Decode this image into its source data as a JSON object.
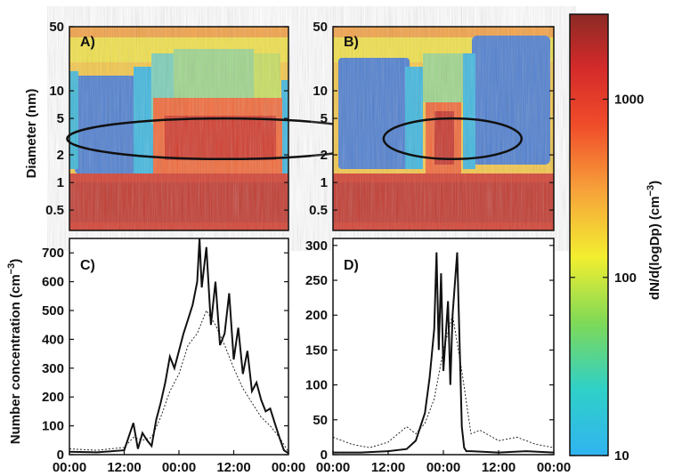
{
  "figure": {
    "y_label_top": "Diameter (nm)",
    "y_label_bottom": "Number concentration (cm",
    "y_label_bottom_sup": "−3",
    "y_label_bottom_close": ")",
    "colorbar_label": "dN/d(logDp) (cm",
    "colorbar_label_sup": "−3",
    "colorbar_label_close": ")"
  },
  "chart_data": [
    {
      "type": "heatmap",
      "panel": "A)",
      "yscale": "log",
      "ylim": [
        0.3,
        50
      ],
      "yticks": [
        "50",
        "10",
        "5",
        "2",
        "1",
        "0.5"
      ],
      "ytick_values": [
        50,
        10,
        5,
        2,
        1,
        0.5
      ],
      "annotation": "ellipse",
      "ellipse_center_diameter_nm": 3.0,
      "ellipse_center_time_h": 34,
      "ellipse_width_h": 23,
      "ellipse_diameter_range_nm": [
        1.8,
        5.0
      ]
    },
    {
      "type": "heatmap",
      "panel": "B)",
      "yscale": "log",
      "ylim": [
        0.3,
        50
      ],
      "yticks": [
        "50",
        "10",
        "5",
        "2",
        "1",
        "0.5"
      ],
      "ytick_values": [
        50,
        10,
        5,
        2,
        1,
        0.5
      ],
      "annotation": "ellipse",
      "ellipse_center_diameter_nm": 3.0,
      "ellipse_center_time_h": 26,
      "ellipse_width_h": 10,
      "ellipse_diameter_range_nm": [
        1.8,
        5.0
      ]
    },
    {
      "type": "line",
      "panel": "C)",
      "xticks": [
        "00:00",
        "12:00",
        "00:00",
        "12:00",
        "00:00"
      ],
      "xtick_values": [
        0,
        12,
        24,
        36,
        48
      ],
      "xlim": [
        0,
        48
      ],
      "ylim": [
        0,
        750
      ],
      "yticks": [
        "0",
        "100",
        "200",
        "300",
        "400",
        "500",
        "600",
        "700"
      ],
      "ytick_values": [
        0,
        100,
        200,
        300,
        400,
        500,
        600,
        700
      ],
      "series": [
        {
          "style": "solid",
          "x": [
            0,
            6,
            12,
            14,
            15,
            16,
            17,
            18,
            19,
            20,
            21,
            22,
            23,
            24,
            25,
            26,
            27,
            28,
            28.5,
            29,
            30,
            31,
            32,
            33,
            34,
            35,
            36,
            37,
            38,
            39,
            40,
            41,
            42,
            43,
            44,
            45,
            46,
            47,
            48
          ],
          "y": [
            10,
            8,
            15,
            110,
            20,
            75,
            50,
            30,
            120,
            180,
            250,
            340,
            300,
            360,
            420,
            470,
            520,
            600,
            750,
            580,
            720,
            450,
            600,
            380,
            420,
            560,
            330,
            440,
            280,
            360,
            220,
            250,
            190,
            150,
            160,
            110,
            60,
            15,
            5
          ]
        },
        {
          "style": "dotted",
          "x": [
            0,
            6,
            12,
            14,
            16,
            18,
            20,
            22,
            24,
            26,
            28,
            30,
            32,
            34,
            36,
            38,
            40,
            42,
            44,
            46,
            48
          ],
          "y": [
            20,
            15,
            25,
            60,
            50,
            60,
            130,
            220,
            280,
            380,
            420,
            500,
            450,
            380,
            300,
            230,
            180,
            130,
            100,
            60,
            10
          ]
        }
      ]
    },
    {
      "type": "line",
      "panel": "D)",
      "xticks": [
        "00:00",
        "12:00",
        "00:00",
        "12:00",
        "00:00"
      ],
      "xtick_values": [
        0,
        12,
        24,
        36,
        48
      ],
      "xlim": [
        0,
        48
      ],
      "ylim": [
        0,
        310
      ],
      "yticks": [
        "0",
        "50",
        "100",
        "150",
        "200",
        "250",
        "300"
      ],
      "ytick_values": [
        0,
        50,
        100,
        150,
        200,
        250,
        300
      ],
      "series": [
        {
          "style": "solid",
          "x": [
            0,
            6,
            12,
            16,
            18,
            19,
            20,
            21,
            22,
            22.5,
            23,
            23.5,
            24,
            25,
            25.5,
            26,
            27,
            28,
            28.5,
            29,
            30,
            36,
            42,
            48
          ],
          "y": [
            3,
            3,
            5,
            8,
            20,
            40,
            60,
            110,
            180,
            290,
            150,
            260,
            120,
            220,
            100,
            200,
            290,
            40,
            10,
            5,
            5,
            3,
            5,
            3
          ],
          "note": ""
        },
        {
          "style": "dotted",
          "x": [
            0,
            4,
            8,
            12,
            16,
            18,
            20,
            22,
            24,
            26,
            28,
            30,
            32,
            36,
            40,
            44,
            48
          ],
          "y": [
            25,
            15,
            10,
            18,
            40,
            30,
            45,
            80,
            150,
            200,
            120,
            30,
            35,
            20,
            25,
            15,
            10
          ]
        }
      ]
    },
    {
      "type": "colorbar",
      "scale": "log",
      "range": [
        10,
        3000
      ],
      "ticks": [
        "1000",
        "100",
        "10"
      ],
      "tick_values": [
        1000,
        100,
        10
      ]
    }
  ]
}
